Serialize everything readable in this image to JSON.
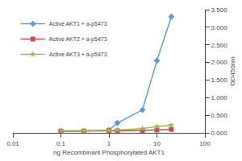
{
  "chart_data": {
    "type": "line",
    "xlabel": "ng Recombinant Phosphorylated AKT1",
    "ylabel": "OD450nm",
    "x": [
      0.1,
      0.3,
      1.0,
      1.5,
      5.0,
      10.0,
      20.0
    ],
    "series": [
      {
        "name": "Active AKT1 + a-p5473",
        "color": "#5b9bd5",
        "marker": "diamond",
        "values": [
          0.04,
          0.05,
          0.08,
          0.28,
          0.65,
          2.05,
          3.3
        ]
      },
      {
        "name": "Active AKT2 + a-p5473",
        "color": "#c0504d",
        "marker": "square",
        "values": [
          0.05,
          0.05,
          0.06,
          0.06,
          0.07,
          0.08,
          0.1
        ]
      },
      {
        "name": "Active AKT3 + a-p5473",
        "color": "#9bbb59",
        "marker": "star",
        "values": [
          0.06,
          0.06,
          0.07,
          0.08,
          0.12,
          0.18,
          0.22
        ]
      }
    ],
    "log": "x",
    "xlim": [
      0.01,
      100
    ],
    "xticks": [
      0.01,
      0.1,
      1,
      10,
      100
    ],
    "ylim": [
      0.0,
      3.5
    ],
    "yticks": [
      {
        "value": 0.0,
        "label": "0.000"
      },
      {
        "value": 0.5,
        "label": "0.500"
      },
      {
        "value": 1.0,
        "label": "1.000"
      },
      {
        "value": 1.5,
        "label": "1.500"
      },
      {
        "value": 2.0,
        "label": "2.000"
      },
      {
        "value": 2.5,
        "label": "2.500"
      },
      {
        "value": 3.0,
        "label": "3.000"
      },
      {
        "value": 3.5,
        "label": "3.500"
      }
    ],
    "grid": false,
    "legend": "upper left"
  }
}
